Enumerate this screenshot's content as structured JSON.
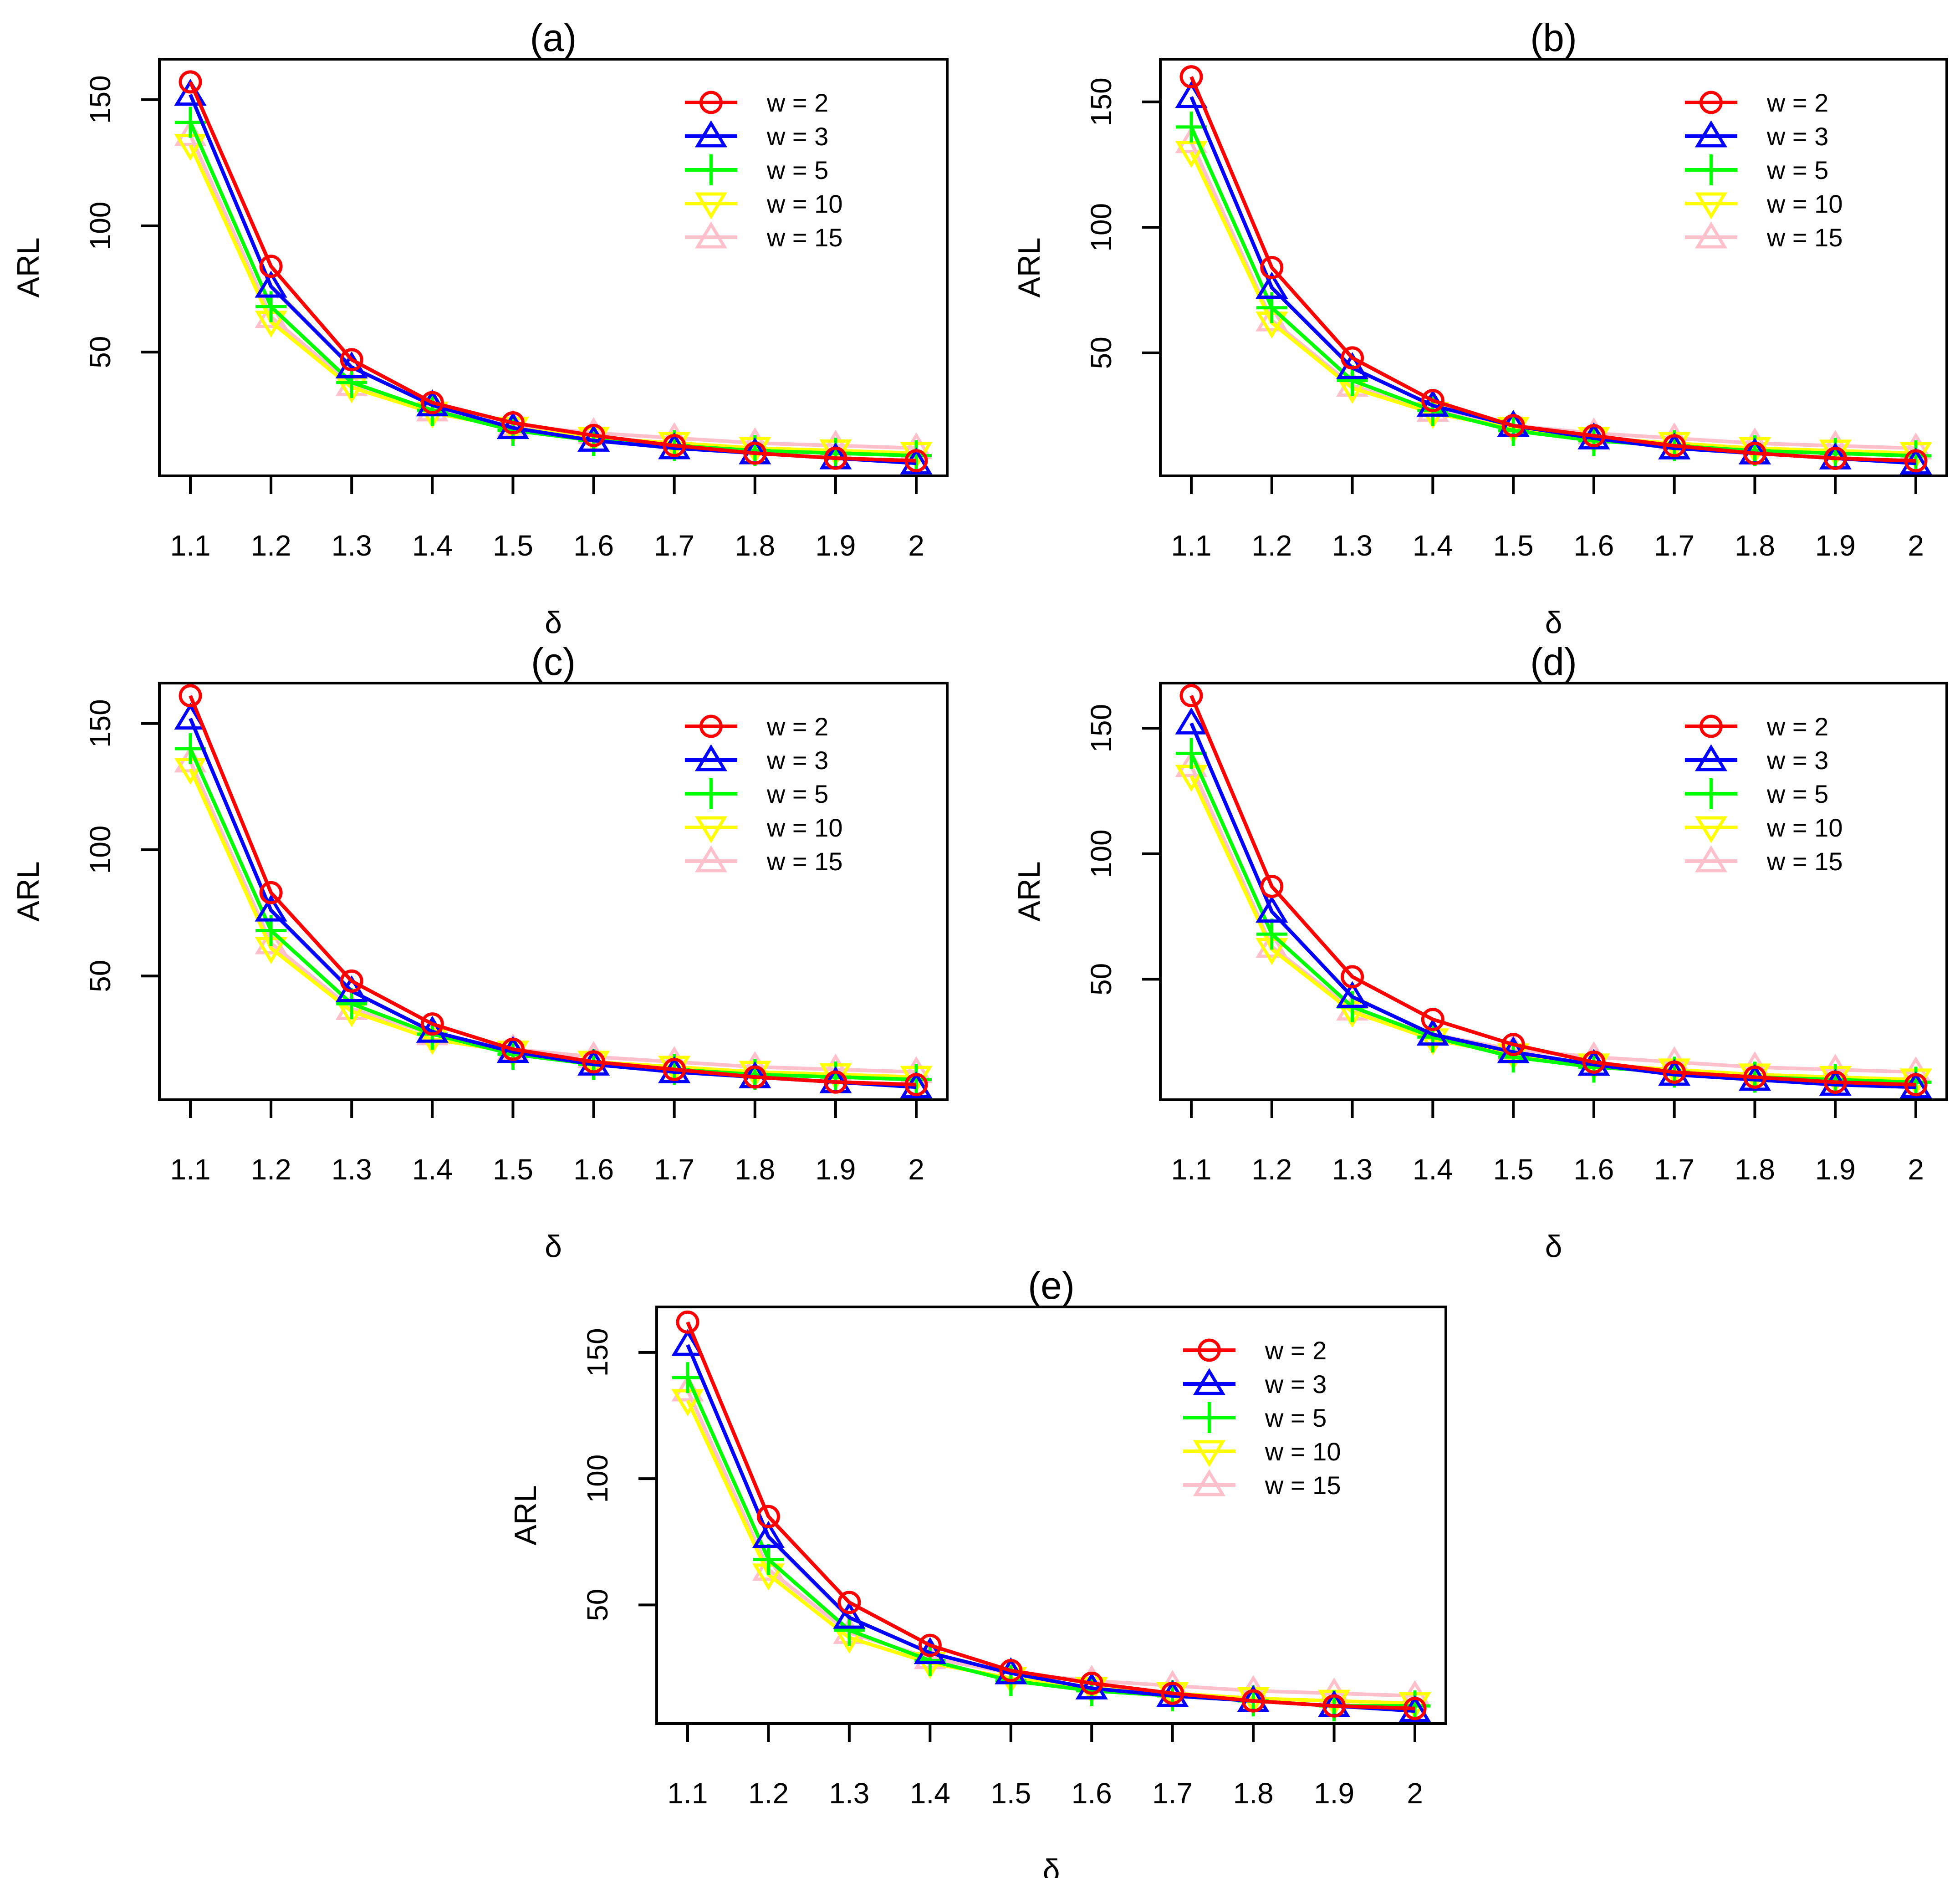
{
  "figure": {
    "legend_glyphs": {
      "circle": "circle",
      "triangle": "triangle",
      "plus": "plus",
      "inverted_triangle": "inverted-triangle"
    }
  },
  "chart_data": [
    {
      "type": "line",
      "title": "(a)",
      "xlabel": "δ",
      "ylabel": "ARL",
      "categories": [
        "1.1",
        "1.2",
        "1.3",
        "1.4",
        "1.5",
        "1.6",
        "1.7",
        "1.8",
        "1.9",
        "2"
      ],
      "yticks": [
        50,
        100,
        150
      ],
      "ylim": [
        1,
        166
      ],
      "legend_position": "top-right",
      "series": [
        {
          "name": "w = 2",
          "color": "#ff0000",
          "marker": "circle",
          "values": [
            157,
            84,
            47,
            30,
            22,
            17,
            13,
            10,
            8,
            7
          ]
        },
        {
          "name": "w = 3",
          "color": "#0000ff",
          "marker": "triangle",
          "values": [
            152,
            76,
            44,
            29,
            20,
            15,
            12,
            10,
            8,
            6
          ]
        },
        {
          "name": "w = 5",
          "color": "#00ff00",
          "marker": "plus",
          "values": [
            141,
            68,
            38,
            27,
            19,
            15,
            13,
            11,
            10,
            9
          ]
        },
        {
          "name": "w = 10",
          "color": "#ffff00",
          "marker": "inverted_triangle",
          "values": [
            132,
            62,
            36,
            26,
            20,
            16,
            14,
            12,
            11,
            10
          ]
        },
        {
          "name": "w = 15",
          "color": "#ffc0cb",
          "marker": "triangle",
          "values": [
            136,
            64,
            37,
            27,
            21,
            18,
            16,
            14,
            13,
            12
          ]
        }
      ]
    },
    {
      "type": "line",
      "title": "(b)",
      "xlabel": "δ",
      "ylabel": "ARL",
      "categories": [
        "1.1",
        "1.2",
        "1.3",
        "1.4",
        "1.5",
        "1.6",
        "1.7",
        "1.8",
        "1.9",
        "2"
      ],
      "yticks": [
        50,
        100,
        150
      ],
      "ylim": [
        1,
        167
      ],
      "legend_position": "top-right",
      "series": [
        {
          "name": "w = 2",
          "color": "#ff0000",
          "marker": "circle",
          "values": [
            160,
            84,
            48,
            31,
            21,
            17,
            13,
            10,
            8,
            7
          ]
        },
        {
          "name": "w = 3",
          "color": "#0000ff",
          "marker": "triangle",
          "values": [
            152,
            76,
            44,
            29,
            21,
            16,
            12,
            10,
            8,
            6
          ]
        },
        {
          "name": "w = 5",
          "color": "#00ff00",
          "marker": "plus",
          "values": [
            140,
            68,
            39,
            27,
            19,
            15,
            13,
            11,
            10,
            9
          ]
        },
        {
          "name": "w = 10",
          "color": "#ffff00",
          "marker": "inverted_triangle",
          "values": [
            130,
            62,
            36,
            26,
            20,
            16,
            14,
            12,
            11,
            10
          ]
        },
        {
          "name": "w = 15",
          "color": "#ffc0cb",
          "marker": "triangle",
          "values": [
            134,
            63,
            37,
            27,
            21,
            18,
            16,
            14,
            13,
            12
          ]
        }
      ]
    },
    {
      "type": "line",
      "title": "(c)",
      "xlabel": "δ",
      "ylabel": "ARL",
      "categories": [
        "1.1",
        "1.2",
        "1.3",
        "1.4",
        "1.5",
        "1.6",
        "1.7",
        "1.8",
        "1.9",
        "2"
      ],
      "yticks": [
        50,
        100,
        150
      ],
      "ylim": [
        1,
        166
      ],
      "legend_position": "top-right",
      "series": [
        {
          "name": "w = 2",
          "color": "#ff0000",
          "marker": "circle",
          "values": [
            161,
            83,
            48,
            31,
            21,
            16,
            13,
            10,
            8,
            7
          ]
        },
        {
          "name": "w = 3",
          "color": "#0000ff",
          "marker": "triangle",
          "values": [
            152,
            76,
            44,
            28,
            20,
            15,
            12,
            10,
            8,
            6
          ]
        },
        {
          "name": "w = 5",
          "color": "#00ff00",
          "marker": "plus",
          "values": [
            140,
            68,
            39,
            27,
            19,
            15,
            13,
            11,
            10,
            9
          ]
        },
        {
          "name": "w = 10",
          "color": "#ffff00",
          "marker": "inverted_triangle",
          "values": [
            132,
            61,
            36,
            25,
            20,
            16,
            14,
            12,
            11,
            10
          ]
        },
        {
          "name": "w = 15",
          "color": "#ffc0cb",
          "marker": "triangle",
          "values": [
            135,
            63,
            37,
            27,
            21,
            18,
            16,
            14,
            13,
            12
          ]
        }
      ]
    },
    {
      "type": "line",
      "title": "(d)",
      "xlabel": "δ",
      "ylabel": "ARL",
      "categories": [
        "1.1",
        "1.2",
        "1.3",
        "1.4",
        "1.5",
        "1.6",
        "1.7",
        "1.8",
        "1.9",
        "2"
      ],
      "yticks": [
        50,
        100,
        150
      ],
      "ylim": [
        2,
        168
      ],
      "legend_position": "top-right",
      "series": [
        {
          "name": "w = 2",
          "color": "#ff0000",
          "marker": "circle",
          "values": [
            163,
            87,
            51,
            34,
            24,
            17,
            13,
            11,
            9,
            8
          ]
        },
        {
          "name": "w = 3",
          "color": "#0000ff",
          "marker": "triangle",
          "values": [
            152,
            77,
            43,
            28,
            21,
            16,
            12,
            10,
            8,
            7
          ]
        },
        {
          "name": "w = 5",
          "color": "#00ff00",
          "marker": "plus",
          "values": [
            140,
            68,
            39,
            27,
            19,
            15,
            13,
            11,
            10,
            9
          ]
        },
        {
          "name": "w = 10",
          "color": "#ffff00",
          "marker": "inverted_triangle",
          "values": [
            131,
            62,
            37,
            26,
            20,
            16,
            14,
            12,
            11,
            10
          ]
        },
        {
          "name": "w = 15",
          "color": "#ffc0cb",
          "marker": "triangle",
          "values": [
            135,
            63,
            38,
            28,
            22,
            19,
            17,
            15,
            14,
            13
          ]
        }
      ]
    },
    {
      "type": "line",
      "title": "(e)",
      "xlabel": "δ",
      "ylabel": "ARL",
      "categories": [
        "1.1",
        "1.2",
        "1.3",
        "1.4",
        "1.5",
        "1.6",
        "1.7",
        "1.8",
        "1.9",
        "2"
      ],
      "yticks": [
        50,
        100,
        150
      ],
      "ylim": [
        3,
        168
      ],
      "legend_position": "top-right",
      "series": [
        {
          "name": "w = 2",
          "color": "#ff0000",
          "marker": "circle",
          "values": [
            162,
            85,
            51,
            34,
            24,
            19,
            15,
            12,
            10,
            9
          ]
        },
        {
          "name": "w = 3",
          "color": "#0000ff",
          "marker": "triangle",
          "values": [
            153,
            77,
            45,
            31,
            23,
            17,
            14,
            12,
            10,
            8
          ]
        },
        {
          "name": "w = 5",
          "color": "#00ff00",
          "marker": "plus",
          "values": [
            140,
            68,
            40,
            28,
            20,
            16,
            14,
            12,
            10,
            10
          ]
        },
        {
          "name": "w = 10",
          "color": "#ffff00",
          "marker": "inverted_triangle",
          "values": [
            131,
            62,
            37,
            27,
            21,
            17,
            15,
            13,
            12,
            11
          ]
        },
        {
          "name": "w = 15",
          "color": "#ffc0cb",
          "marker": "triangle",
          "values": [
            135,
            64,
            39,
            29,
            23,
            20,
            18,
            16,
            15,
            14
          ]
        }
      ]
    }
  ]
}
